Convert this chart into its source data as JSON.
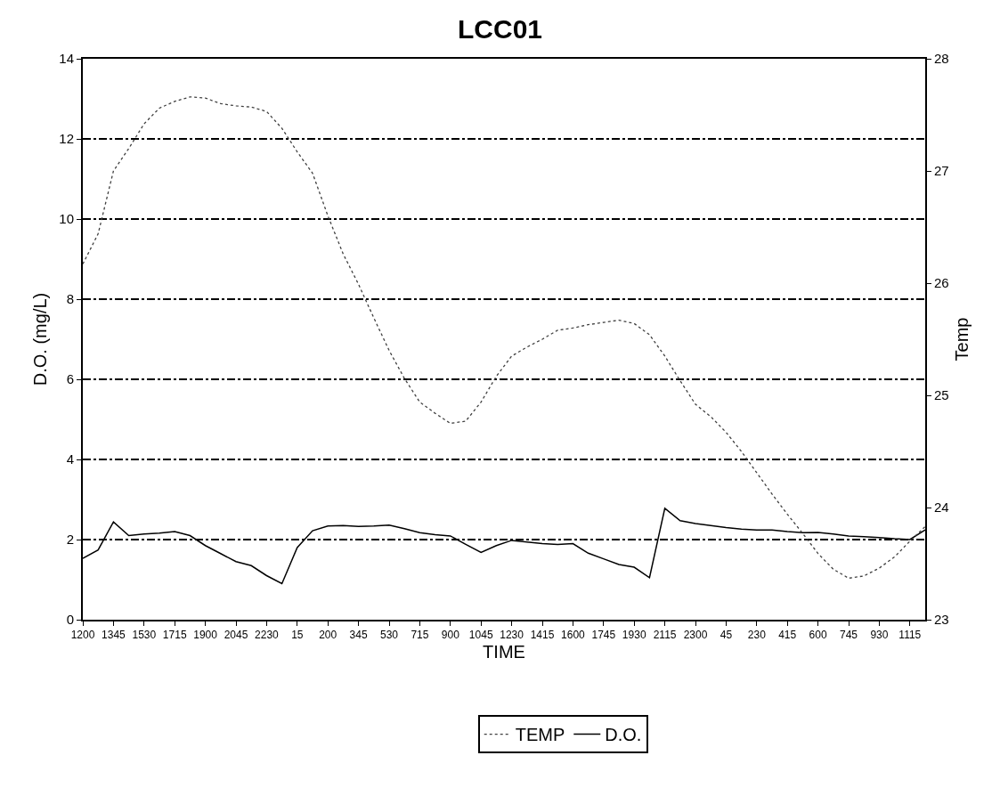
{
  "chart_data": {
    "type": "line",
    "title": "LCC01",
    "xlabel": "TIME",
    "ylabel": "D.O. (mg/L)",
    "y2label": "Temp",
    "categories": [
      "1200",
      null,
      "1345",
      null,
      "1530",
      null,
      "1715",
      null,
      "1900",
      null,
      "2045",
      null,
      "2230",
      null,
      "15",
      null,
      "200",
      null,
      "345",
      null,
      "530",
      null,
      "715",
      null,
      "900",
      null,
      "1045",
      null,
      "1230",
      null,
      "1415",
      null,
      "1600",
      null,
      "1745",
      null,
      "1930",
      null,
      "2115",
      null,
      "2300",
      null,
      "45",
      null,
      "230",
      null,
      "415",
      null,
      "600",
      null,
      "745",
      null,
      "930",
      null,
      "1115",
      null
    ],
    "ylim": [
      0,
      14
    ],
    "yticks": [
      0,
      2,
      4,
      6,
      8,
      10,
      12,
      14
    ],
    "y2lim": [
      23,
      28
    ],
    "y2ticks": [
      23,
      24,
      25,
      26,
      27,
      28
    ],
    "grid": "y",
    "legend": "bottom",
    "series": [
      {
        "name": "TEMP",
        "color": "#404040",
        "axis": "y2",
        "line_style": "dotted",
        "values": [
          26.17,
          26.44,
          27.0,
          27.2,
          27.42,
          27.56,
          27.62,
          27.66,
          27.65,
          27.6,
          27.58,
          27.57,
          27.53,
          27.38,
          27.17,
          26.98,
          26.6,
          26.26,
          25.99,
          25.69,
          25.4,
          25.15,
          24.94,
          24.84,
          24.75,
          24.77,
          24.94,
          25.17,
          25.35,
          25.43,
          25.5,
          25.58,
          25.6,
          25.63,
          25.65,
          25.67,
          25.64,
          25.54,
          25.35,
          25.13,
          24.92,
          24.81,
          24.67,
          24.5,
          24.31,
          24.12,
          23.94,
          23.77,
          23.59,
          23.45,
          23.37,
          23.39,
          23.46,
          23.56,
          23.7,
          23.83
        ]
      },
      {
        "name": "D.O.",
        "color": "#000000",
        "line_style": "solid",
        "values": [
          1.53,
          1.74,
          2.44,
          2.1,
          2.14,
          2.16,
          2.2,
          2.1,
          1.85,
          1.65,
          1.45,
          1.35,
          1.1,
          0.9,
          1.8,
          2.22,
          2.34,
          2.35,
          2.33,
          2.34,
          2.36,
          2.27,
          2.17,
          2.12,
          2.09,
          1.88,
          1.68,
          1.85,
          1.98,
          1.94,
          1.9,
          1.88,
          1.9,
          1.66,
          1.52,
          1.38,
          1.31,
          1.05,
          2.78,
          2.47,
          2.4,
          2.35,
          2.3,
          2.26,
          2.24,
          2.24,
          2.2,
          2.17,
          2.18,
          2.14,
          2.09,
          2.07,
          2.05,
          2.02,
          2.0,
          2.24
        ]
      }
    ]
  }
}
